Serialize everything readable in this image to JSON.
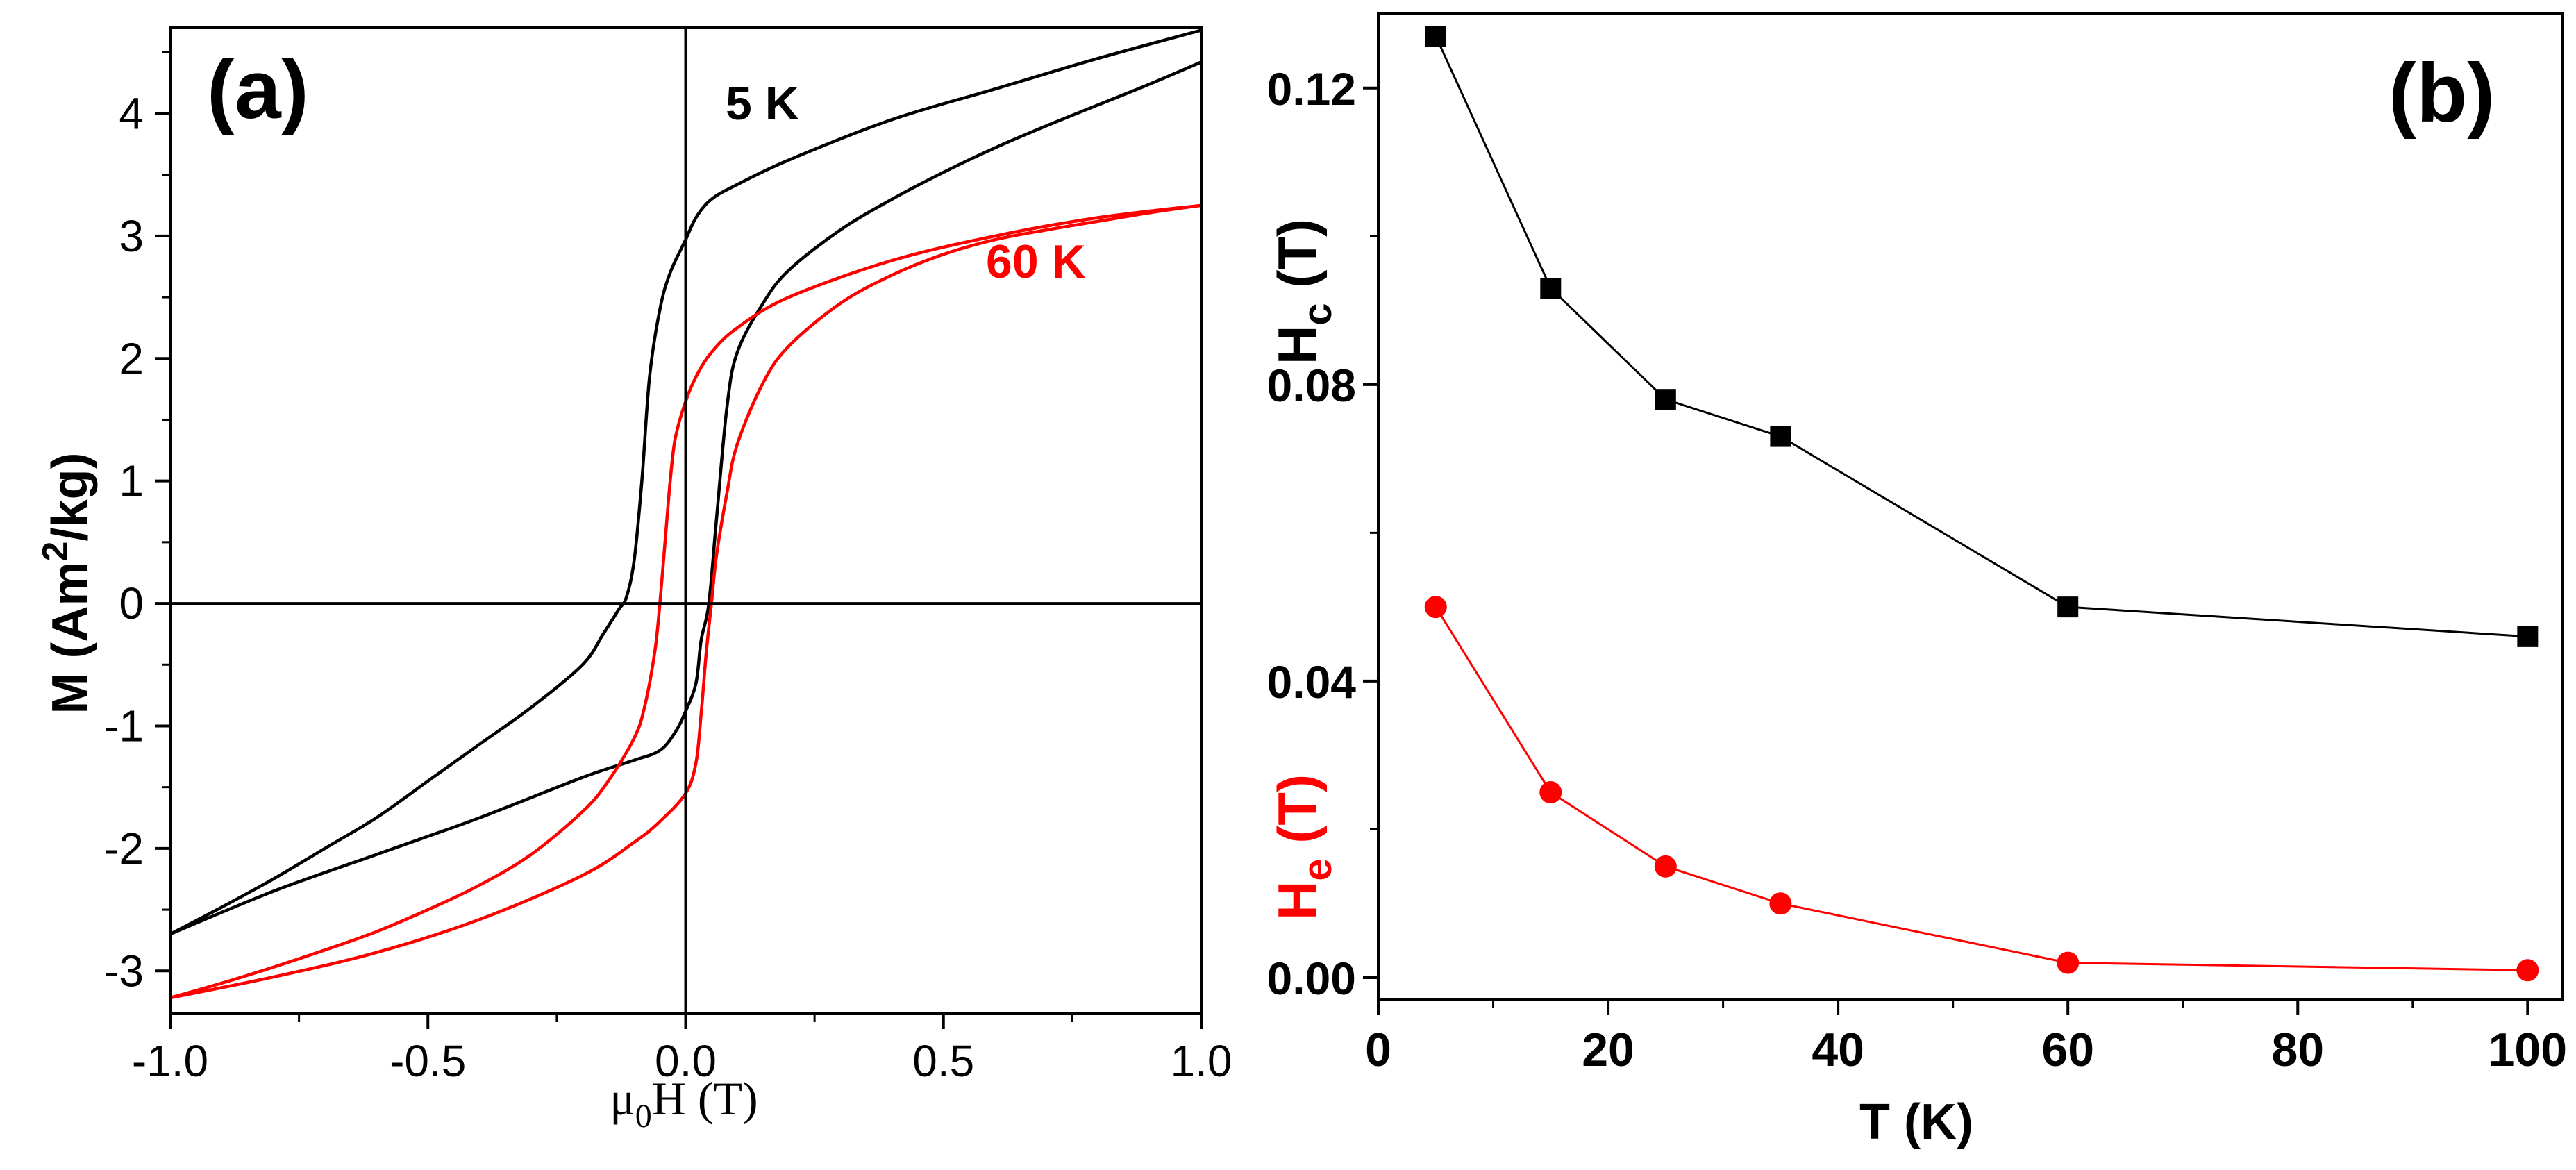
{
  "colors": {
    "black": "#000000",
    "red": "#ff0000",
    "axis": "#000000",
    "background": "#ffffff"
  },
  "chart_data": [
    {
      "id": "a",
      "type": "line",
      "panel_label": "(a)",
      "xlabel": {
        "prefix": "μ",
        "sub": "0",
        "rest": "H (T)"
      },
      "ylabel": {
        "prefix": "M (Am",
        "sup": "2",
        "rest": "/kg)"
      },
      "xlim": [
        -1.0,
        1.0
      ],
      "ylim": [
        -3.35,
        4.7
      ],
      "xticks": [
        -1.0,
        -0.5,
        0.0,
        0.5,
        1.0
      ],
      "xtick_labels": [
        "-1.0",
        "-0.5",
        "0.0",
        "0.5",
        "1.0"
      ],
      "yticks": [
        -3,
        -2,
        -1,
        0,
        1,
        2,
        3,
        4
      ],
      "ytick_labels": [
        "-3",
        "-2",
        "-1",
        "0",
        "1",
        "2",
        "3",
        "4"
      ],
      "zero_lines": {
        "x": 0,
        "y": 0
      },
      "series": [
        {
          "name": "5 K",
          "label": "5 K",
          "color": "#000000",
          "descending_branch": [
            [
              1.0,
              4.68
            ],
            [
              0.8,
              4.45
            ],
            [
              0.6,
              4.2
            ],
            [
              0.4,
              3.95
            ],
            [
              0.2,
              3.62
            ],
            [
              0.1,
              3.42
            ],
            [
              0.05,
              3.3
            ],
            [
              0.02,
              3.15
            ],
            [
              0.0,
              2.97
            ],
            [
              -0.03,
              2.7
            ],
            [
              -0.05,
              2.4
            ],
            [
              -0.07,
              1.85
            ],
            [
              -0.085,
              1.0
            ],
            [
              -0.1,
              0.35
            ],
            [
              -0.115,
              0.05
            ],
            [
              -0.13,
              -0.05
            ],
            [
              -0.16,
              -0.25
            ],
            [
              -0.2,
              -0.5
            ],
            [
              -0.3,
              -0.85
            ],
            [
              -0.4,
              -1.15
            ],
            [
              -0.5,
              -1.45
            ],
            [
              -0.6,
              -1.75
            ],
            [
              -0.7,
              -2.0
            ],
            [
              -0.8,
              -2.25
            ],
            [
              -0.9,
              -2.48
            ],
            [
              -1.0,
              -2.7
            ]
          ],
          "ascending_branch": [
            [
              -1.0,
              -2.7
            ],
            [
              -0.8,
              -2.35
            ],
            [
              -0.6,
              -2.05
            ],
            [
              -0.4,
              -1.75
            ],
            [
              -0.2,
              -1.42
            ],
            [
              -0.1,
              -1.28
            ],
            [
              -0.05,
              -1.2
            ],
            [
              -0.02,
              -1.05
            ],
            [
              0.0,
              -0.88
            ],
            [
              0.02,
              -0.65
            ],
            [
              0.03,
              -0.3
            ],
            [
              0.045,
              0.0
            ],
            [
              0.06,
              0.7
            ],
            [
              0.08,
              1.6
            ],
            [
              0.1,
              2.05
            ],
            [
              0.15,
              2.45
            ],
            [
              0.2,
              2.72
            ],
            [
              0.3,
              3.05
            ],
            [
              0.4,
              3.3
            ],
            [
              0.5,
              3.52
            ],
            [
              0.6,
              3.72
            ],
            [
              0.7,
              3.9
            ],
            [
              0.8,
              4.07
            ],
            [
              0.9,
              4.24
            ],
            [
              1.0,
              4.42
            ]
          ]
        },
        {
          "name": "60 K",
          "label": "60 K",
          "color": "#ff0000",
          "descending_branch": [
            [
              1.0,
              3.25
            ],
            [
              0.8,
              3.15
            ],
            [
              0.6,
              3.0
            ],
            [
              0.4,
              2.8
            ],
            [
              0.2,
              2.5
            ],
            [
              0.1,
              2.25
            ],
            [
              0.05,
              2.05
            ],
            [
              0.02,
              1.85
            ],
            [
              0.0,
              1.65
            ],
            [
              -0.02,
              1.35
            ],
            [
              -0.03,
              1.0
            ],
            [
              -0.04,
              0.5
            ],
            [
              -0.05,
              0.0
            ],
            [
              -0.06,
              -0.4
            ],
            [
              -0.08,
              -0.85
            ],
            [
              -0.1,
              -1.1
            ],
            [
              -0.15,
              -1.45
            ],
            [
              -0.2,
              -1.7
            ],
            [
              -0.3,
              -2.05
            ],
            [
              -0.4,
              -2.3
            ],
            [
              -0.5,
              -2.5
            ],
            [
              -0.6,
              -2.68
            ],
            [
              -0.7,
              -2.83
            ],
            [
              -0.8,
              -2.97
            ],
            [
              -0.9,
              -3.1
            ],
            [
              -1.0,
              -3.22
            ]
          ],
          "ascending_branch": [
            [
              -1.0,
              -3.22
            ],
            [
              -0.8,
              -3.05
            ],
            [
              -0.6,
              -2.85
            ],
            [
              -0.4,
              -2.58
            ],
            [
              -0.2,
              -2.22
            ],
            [
              -0.1,
              -1.95
            ],
            [
              -0.05,
              -1.78
            ],
            [
              0.0,
              -1.55
            ],
            [
              0.02,
              -1.3
            ],
            [
              0.03,
              -0.9
            ],
            [
              0.04,
              -0.4
            ],
            [
              0.05,
              0.0
            ],
            [
              0.06,
              0.4
            ],
            [
              0.08,
              0.9
            ],
            [
              0.1,
              1.3
            ],
            [
              0.15,
              1.8
            ],
            [
              0.2,
              2.1
            ],
            [
              0.3,
              2.45
            ],
            [
              0.4,
              2.68
            ],
            [
              0.5,
              2.85
            ],
            [
              0.6,
              2.97
            ],
            [
              0.7,
              3.05
            ],
            [
              0.8,
              3.12
            ],
            [
              0.9,
              3.19
            ],
            [
              1.0,
              3.25
            ]
          ]
        }
      ]
    },
    {
      "id": "b",
      "type": "line",
      "panel_label": "(b)",
      "xlabel": "T (K)",
      "ylabel_hc": {
        "main": "H",
        "sub": "c",
        "rest": " (T)"
      },
      "ylabel_he": {
        "main": "H",
        "sub": "e",
        "rest": " (T)"
      },
      "xlim": [
        0,
        103
      ],
      "ylim": [
        -0.003,
        0.13
      ],
      "xticks": [
        0,
        20,
        40,
        60,
        80,
        100
      ],
      "xtick_labels": [
        "0",
        "20",
        "40",
        "60",
        "80",
        "100"
      ],
      "yticks": [
        0.0,
        0.04,
        0.08,
        0.12
      ],
      "ytick_labels": [
        "0.00",
        "0.04",
        "0.08",
        "0.12"
      ],
      "x": [
        5,
        15,
        25,
        35,
        60,
        100
      ],
      "series": [
        {
          "name": "Hc",
          "marker": "square",
          "color": "#000000",
          "values": [
            0.127,
            0.093,
            0.078,
            0.073,
            0.05,
            0.046
          ]
        },
        {
          "name": "He",
          "marker": "circle",
          "color": "#ff0000",
          "values": [
            0.05,
            0.025,
            0.015,
            0.01,
            0.002,
            0.001
          ]
        }
      ]
    }
  ]
}
